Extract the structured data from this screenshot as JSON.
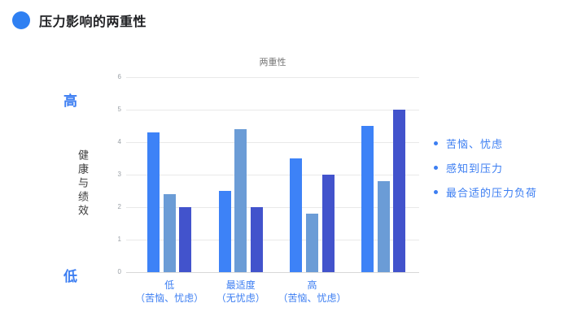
{
  "slide": {
    "title": "压力影响的两重性",
    "accent_color": "#2f80f2"
  },
  "left_axis_annotations": {
    "top": "高",
    "axis_title": "健康与绩效",
    "bottom": "低"
  },
  "legend": {
    "items": [
      "苦恼、忧虑",
      "感知到压力",
      "最合适的压力负荷"
    ],
    "text_color": "#3c7ef2"
  },
  "chart_data": {
    "type": "bar",
    "title": "两重性",
    "categories": [
      "低\n（苦恼、忧虑）",
      "最适度\n（无忧虑）",
      "高\n（苦恼、忧虑）",
      ""
    ],
    "series": [
      {
        "name": "苦恼、忧虑",
        "color": "#3d82f7",
        "values": [
          4.3,
          2.5,
          3.5,
          4.5
        ]
      },
      {
        "name": "感知到压力",
        "color": "#6b9cd6",
        "values": [
          2.4,
          4.4,
          1.8,
          2.8
        ]
      },
      {
        "name": "最合适的压力负荷",
        "color": "#4253cc",
        "values": [
          2.0,
          2.0,
          3.0,
          5.0
        ]
      }
    ],
    "ylabel": "健康与绩效",
    "ylim": [
      0,
      6
    ],
    "yticks": [
      0,
      1,
      2,
      3,
      4,
      5,
      6
    ],
    "grid": true,
    "legend_position": "right",
    "xlabel": ""
  }
}
